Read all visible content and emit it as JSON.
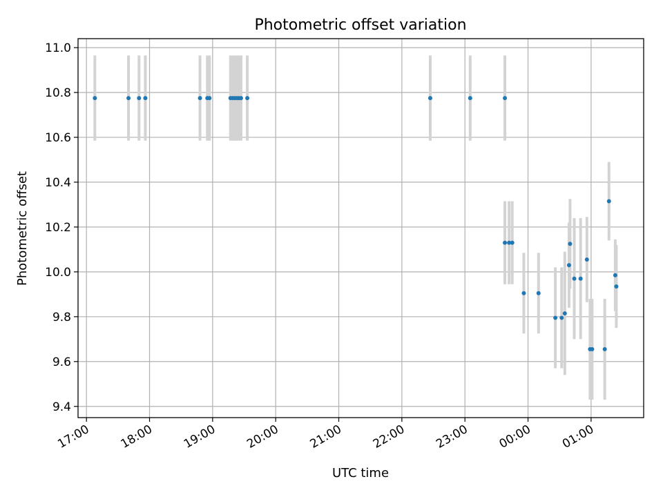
{
  "chart_data": {
    "type": "scatter",
    "title": "Photometric offset variation",
    "xlabel": "UTC time",
    "ylabel": "Photometric offset",
    "grid": true,
    "xlim": [
      "2020-01-01T16:52",
      "2020-01-02T01:50"
    ],
    "ylim": [
      9.35,
      11.04
    ],
    "x_ticks": [
      "17:00",
      "18:00",
      "19:00",
      "20:00",
      "21:00",
      "22:00",
      "23:00",
      "00:00",
      "01:00"
    ],
    "y_ticks": [
      "9.4",
      "9.6",
      "9.8",
      "10.0",
      "10.2",
      "10.4",
      "10.6",
      "10.8",
      "11.0"
    ],
    "colors": {
      "marker": "#1f77b4",
      "errorbar": "#d3d3d3",
      "grid": "#b0b0b0"
    },
    "series": [
      {
        "points": [
          {
            "x": "2020-01-01T17:08",
            "y": 10.775,
            "err": 0.19
          },
          {
            "x": "2020-01-01T17:40",
            "y": 10.775,
            "err": 0.19
          },
          {
            "x": "2020-01-01T17:50",
            "y": 10.775,
            "err": 0.19
          },
          {
            "x": "2020-01-01T17:56",
            "y": 10.775,
            "err": 0.19
          },
          {
            "x": "2020-01-01T18:48",
            "y": 10.775,
            "err": 0.19
          },
          {
            "x": "2020-01-01T18:55",
            "y": 10.775,
            "err": 0.19
          },
          {
            "x": "2020-01-01T18:57",
            "y": 10.775,
            "err": 0.19
          },
          {
            "x": "2020-01-01T19:17",
            "y": 10.775,
            "err": 0.19
          },
          {
            "x": "2020-01-01T19:19",
            "y": 10.775,
            "err": 0.19
          },
          {
            "x": "2020-01-01T19:21",
            "y": 10.775,
            "err": 0.19
          },
          {
            "x": "2020-01-01T19:23",
            "y": 10.775,
            "err": 0.19
          },
          {
            "x": "2020-01-01T19:25",
            "y": 10.775,
            "err": 0.19
          },
          {
            "x": "2020-01-01T19:27",
            "y": 10.775,
            "err": 0.19
          },
          {
            "x": "2020-01-01T19:33",
            "y": 10.775,
            "err": 0.19
          },
          {
            "x": "2020-01-01T22:27",
            "y": 10.775,
            "err": 0.19
          },
          {
            "x": "2020-01-01T23:05",
            "y": 10.775,
            "err": 0.19
          },
          {
            "x": "2020-01-01T23:38",
            "y": 10.775,
            "err": 0.19
          },
          {
            "x": "2020-01-01T23:38",
            "y": 10.13,
            "err": 0.185
          },
          {
            "x": "2020-01-01T23:42",
            "y": 10.13,
            "err": 0.185
          },
          {
            "x": "2020-01-01T23:45",
            "y": 10.13,
            "err": 0.185
          },
          {
            "x": "2020-01-01T23:56",
            "y": 9.905,
            "err": 0.18
          },
          {
            "x": "2020-01-02T00:10",
            "y": 9.905,
            "err": 0.18
          },
          {
            "x": "2020-01-02T00:26",
            "y": 9.795,
            "err": 0.225
          },
          {
            "x": "2020-01-02T00:32",
            "y": 9.795,
            "err": 0.225
          },
          {
            "x": "2020-01-02T00:35",
            "y": 9.815,
            "err": 0.275
          },
          {
            "x": "2020-01-02T00:39",
            "y": 10.03,
            "err": 0.19
          },
          {
            "x": "2020-01-02T00:40",
            "y": 10.125,
            "err": 0.2
          },
          {
            "x": "2020-01-02T00:44",
            "y": 9.97,
            "err": 0.27
          },
          {
            "x": "2020-01-02T00:50",
            "y": 9.97,
            "err": 0.27
          },
          {
            "x": "2020-01-02T00:56",
            "y": 10.055,
            "err": 0.19
          },
          {
            "x": "2020-01-02T00:59",
            "y": 9.655,
            "err": 0.225
          },
          {
            "x": "2020-01-02T01:01",
            "y": 9.655,
            "err": 0.225
          },
          {
            "x": "2020-01-02T01:13",
            "y": 9.655,
            "err": 0.225
          },
          {
            "x": "2020-01-02T01:17",
            "y": 10.315,
            "err": 0.175
          },
          {
            "x": "2020-01-02T01:23",
            "y": 9.985,
            "err": 0.16
          },
          {
            "x": "2020-01-02T01:24",
            "y": 9.935,
            "err": 0.185
          }
        ]
      }
    ]
  }
}
